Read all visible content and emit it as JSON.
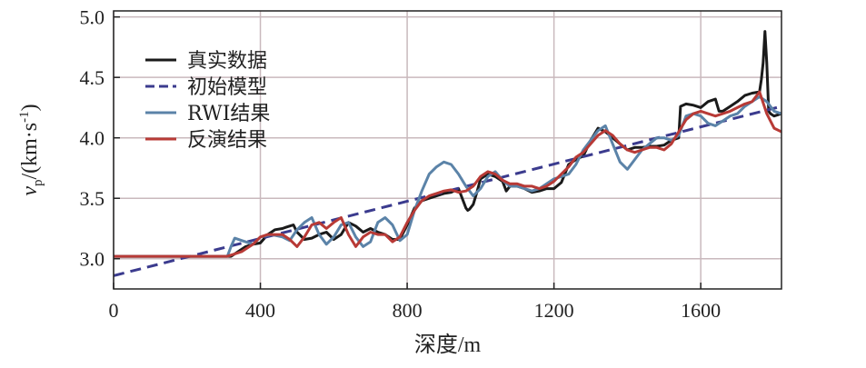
{
  "chart_data": {
    "type": "line",
    "xlabel": "深度/m",
    "ylabel": {
      "main": "v",
      "sub": "p",
      "unit": "/(km·s",
      "sup": "-1",
      "close": ")"
    },
    "xlim": [
      0,
      1820
    ],
    "ylim": [
      2.75,
      5.05
    ],
    "xticks": [
      0,
      400,
      800,
      1200,
      1600
    ],
    "xtick_labels": [
      "0",
      "400",
      "800",
      "1200",
      "1600"
    ],
    "yticks": [
      3.0,
      3.5,
      4.0,
      4.5,
      5.0
    ],
    "ytick_labels": [
      "3.0",
      "3.5",
      "4.0",
      "4.5",
      "5.0"
    ],
    "grid": true,
    "legend": "top-left",
    "series": [
      {
        "name": "真实数据",
        "color": "#1a1a1a",
        "style": "solid",
        "x": [
          0,
          320,
          340,
          360,
          380,
          400,
          420,
          440,
          460,
          470,
          480,
          490,
          500,
          520,
          540,
          560,
          580,
          600,
          620,
          640,
          660,
          680,
          700,
          720,
          740,
          760,
          780,
          800,
          820,
          840,
          860,
          880,
          900,
          920,
          940,
          960,
          965,
          970,
          980,
          990,
          1000,
          1020,
          1040,
          1060,
          1070,
          1080,
          1100,
          1120,
          1140,
          1160,
          1180,
          1200,
          1220,
          1240,
          1260,
          1280,
          1300,
          1320,
          1340,
          1360,
          1380,
          1400,
          1420,
          1440,
          1460,
          1480,
          1500,
          1520,
          1540,
          1545,
          1560,
          1580,
          1600,
          1620,
          1640,
          1650,
          1660,
          1680,
          1700,
          1720,
          1740,
          1760,
          1765,
          1770,
          1775,
          1780,
          1785,
          1790,
          1800,
          1820
        ],
        "y": [
          3.02,
          3.02,
          3.06,
          3.1,
          3.12,
          3.13,
          3.2,
          3.24,
          3.25,
          3.26,
          3.27,
          3.28,
          3.22,
          3.16,
          3.17,
          3.2,
          3.22,
          3.16,
          3.2,
          3.3,
          3.27,
          3.22,
          3.25,
          3.22,
          3.2,
          3.16,
          3.16,
          3.28,
          3.42,
          3.48,
          3.5,
          3.52,
          3.54,
          3.55,
          3.58,
          3.42,
          3.4,
          3.41,
          3.45,
          3.55,
          3.66,
          3.7,
          3.68,
          3.64,
          3.56,
          3.6,
          3.6,
          3.58,
          3.55,
          3.56,
          3.58,
          3.58,
          3.63,
          3.78,
          3.82,
          3.85,
          3.98,
          4.08,
          4.05,
          4.0,
          3.95,
          3.9,
          3.92,
          3.92,
          3.93,
          3.93,
          3.94,
          3.98,
          4.0,
          4.26,
          4.28,
          4.27,
          4.25,
          4.3,
          4.32,
          4.22,
          4.22,
          4.26,
          4.3,
          4.35,
          4.37,
          4.38,
          4.48,
          4.62,
          4.88,
          4.62,
          4.22,
          4.2,
          4.18,
          4.2
        ]
      },
      {
        "name": "初始模型",
        "color": "#3b3b8e",
        "style": "dashed",
        "x": [
          0,
          1820
        ],
        "y": [
          2.86,
          4.26
        ]
      },
      {
        "name": "RWI结果",
        "color": "#5b83a8",
        "style": "solid",
        "x": [
          0,
          310,
          320,
          330,
          350,
          380,
          400,
          430,
          460,
          480,
          500,
          520,
          540,
          560,
          580,
          600,
          620,
          640,
          660,
          680,
          700,
          720,
          740,
          760,
          780,
          800,
          820,
          840,
          860,
          880,
          900,
          920,
          940,
          960,
          980,
          1000,
          1020,
          1040,
          1060,
          1080,
          1100,
          1120,
          1140,
          1160,
          1180,
          1200,
          1220,
          1240,
          1260,
          1280,
          1300,
          1320,
          1340,
          1360,
          1380,
          1400,
          1420,
          1440,
          1460,
          1480,
          1500,
          1520,
          1540,
          1560,
          1580,
          1600,
          1620,
          1640,
          1660,
          1680,
          1700,
          1720,
          1740,
          1760,
          1780,
          1800,
          1820
        ],
        "y": [
          3.02,
          3.02,
          3.1,
          3.17,
          3.15,
          3.12,
          3.18,
          3.2,
          3.18,
          3.15,
          3.24,
          3.3,
          3.34,
          3.2,
          3.12,
          3.18,
          3.28,
          3.3,
          3.18,
          3.1,
          3.14,
          3.3,
          3.34,
          3.28,
          3.15,
          3.2,
          3.4,
          3.56,
          3.7,
          3.76,
          3.8,
          3.78,
          3.7,
          3.6,
          3.52,
          3.58,
          3.68,
          3.72,
          3.65,
          3.6,
          3.6,
          3.58,
          3.56,
          3.58,
          3.62,
          3.66,
          3.68,
          3.7,
          3.78,
          3.9,
          3.98,
          4.06,
          4.1,
          3.95,
          3.8,
          3.74,
          3.82,
          3.9,
          3.95,
          4.0,
          4.0,
          3.98,
          4.02,
          4.18,
          4.2,
          4.18,
          4.12,
          4.1,
          4.14,
          4.18,
          4.2,
          4.26,
          4.3,
          4.34,
          4.3,
          4.22,
          4.2
        ]
      },
      {
        "name": "反演结果",
        "color": "#b83a36",
        "style": "solid",
        "x": [
          0,
          310,
          330,
          350,
          380,
          400,
          420,
          440,
          460,
          480,
          500,
          520,
          540,
          560,
          580,
          600,
          620,
          640,
          660,
          680,
          700,
          720,
          740,
          760,
          780,
          800,
          820,
          840,
          860,
          880,
          900,
          920,
          940,
          960,
          980,
          1000,
          1020,
          1040,
          1060,
          1080,
          1100,
          1120,
          1140,
          1160,
          1180,
          1200,
          1220,
          1240,
          1260,
          1280,
          1300,
          1320,
          1340,
          1360,
          1380,
          1400,
          1420,
          1440,
          1460,
          1480,
          1500,
          1520,
          1540,
          1560,
          1580,
          1600,
          1620,
          1640,
          1660,
          1680,
          1700,
          1720,
          1740,
          1760,
          1780,
          1800,
          1820
        ],
        "y": [
          3.02,
          3.02,
          3.04,
          3.06,
          3.12,
          3.18,
          3.2,
          3.2,
          3.2,
          3.16,
          3.1,
          3.18,
          3.28,
          3.3,
          3.25,
          3.3,
          3.34,
          3.2,
          3.1,
          3.18,
          3.22,
          3.2,
          3.2,
          3.14,
          3.18,
          3.3,
          3.4,
          3.48,
          3.52,
          3.54,
          3.56,
          3.57,
          3.55,
          3.56,
          3.6,
          3.68,
          3.72,
          3.7,
          3.65,
          3.62,
          3.62,
          3.6,
          3.6,
          3.58,
          3.6,
          3.64,
          3.7,
          3.76,
          3.84,
          3.88,
          3.95,
          4.02,
          4.06,
          4.02,
          3.95,
          3.9,
          3.88,
          3.9,
          3.92,
          3.92,
          3.9,
          3.95,
          4.05,
          4.15,
          4.2,
          4.22,
          4.2,
          4.18,
          4.2,
          4.22,
          4.25,
          4.28,
          4.3,
          4.38,
          4.2,
          4.08,
          4.05
        ]
      }
    ]
  }
}
